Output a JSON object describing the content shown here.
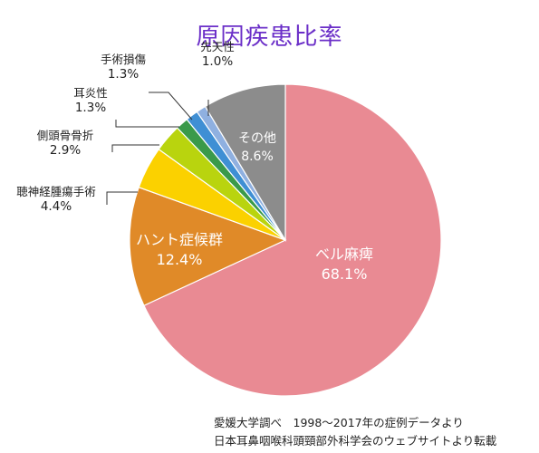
{
  "chart_data": {
    "type": "pie",
    "title": "原因疾患比率",
    "slices": [
      {
        "label": "ベル麻痺",
        "value_label": "68.1%",
        "value": 68.1,
        "color": "#e98a93"
      },
      {
        "label": "ハント症候群",
        "value_label": "12.4%",
        "value": 12.4,
        "color": "#e08a28"
      },
      {
        "label": "聴神経腫瘍手術",
        "value_label": "4.4%",
        "value": 4.4,
        "color": "#fbd100"
      },
      {
        "label": "側頭骨骨折",
        "value_label": "2.9%",
        "value": 2.9,
        "color": "#b9d40e"
      },
      {
        "label": "耳炎性",
        "value_label": "1.3%",
        "value": 1.3,
        "color": "#3a9a4a"
      },
      {
        "label": "手術損傷",
        "value_label": "1.3%",
        "value": 1.3,
        "color": "#3f8fd4"
      },
      {
        "label": "先天性",
        "value_label": "1.0%",
        "value": 1.0,
        "color": "#8fb0e0"
      },
      {
        "label": "その他",
        "value_label": "8.6%",
        "value": 8.6,
        "color": "#8c8c8c"
      }
    ],
    "start_angle_deg": 0,
    "direction": "clockwise"
  },
  "source": {
    "line1": "愛媛大学調べ　1998～2017年の症例データより",
    "line2": "日本耳鼻咽喉科頭頸部外科学会のウェブサイトより転載"
  }
}
